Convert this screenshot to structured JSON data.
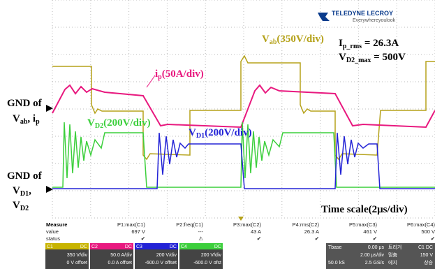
{
  "logo": {
    "brand": "TELEDYNE LECROY",
    "tagline": "Everywhereyoulook"
  },
  "annotations": {
    "vab": [
      "V",
      "ab",
      "(350V/div)"
    ],
    "ip_rms": [
      "I",
      "p_rms",
      " = 26.3A"
    ],
    "vd2_max": [
      "V",
      "D2_max",
      " = 500V"
    ],
    "ip": [
      "i",
      "p",
      "(50A/div)"
    ],
    "vd2": [
      "V",
      "D2",
      "(200V/div)"
    ],
    "vd1": [
      "V",
      "D1",
      "(200V/div)"
    ],
    "gnd_top": [
      "GND of",
      "V",
      "ab",
      ", i",
      "p"
    ],
    "gnd_bottom": [
      "GND of",
      "V",
      "D1",
      ",",
      "V",
      "D2"
    ],
    "time_scale": "Time scale(2μs/div)"
  },
  "measure": {
    "row_labels": [
      "Measure",
      "value",
      "status"
    ],
    "columns": [
      {
        "header": "P1:max(C1)",
        "value": "697 V",
        "status": "✔"
      },
      {
        "header": "P2:freq(C1)",
        "value": "---",
        "status": "⚠"
      },
      {
        "header": "P3:max(C2)",
        "value": "43 A",
        "status": "✔"
      },
      {
        "header": "P4:rms(C2)",
        "value": "26.3 A",
        "status": "✔"
      },
      {
        "header": "P5:max(C3)",
        "value": "461 V",
        "status": "✔"
      },
      {
        "header": "P6:max(C4)",
        "value": "500 V",
        "status": "✔"
      }
    ]
  },
  "channels": [
    {
      "name": "C1",
      "coupling": "DC",
      "scale": "350 V/div",
      "offset": "0 V offset"
    },
    {
      "name": "C2",
      "coupling": "DC",
      "scale": "50.0 A/div",
      "offset": "0.0 A offset"
    },
    {
      "name": "C3",
      "coupling": "DC",
      "scale": "200 V/div",
      "offset": "-600.0 V offset"
    },
    {
      "name": "C4",
      "coupling": "DC",
      "scale": "200 V/div",
      "offset": "-600.0 V ofst"
    }
  ],
  "timebase": {
    "label": "Tbase",
    "delay": "0.00 μs",
    "rate": "2.00 μs/div",
    "samples": "50.0 kS",
    "sample_rate": "2.5 GS/s"
  },
  "trigger": {
    "label": "트리거",
    "source": "C1 DC",
    "mode": "멈춤",
    "level": "150 V",
    "type": "에지",
    "slope": "상승"
  }
}
